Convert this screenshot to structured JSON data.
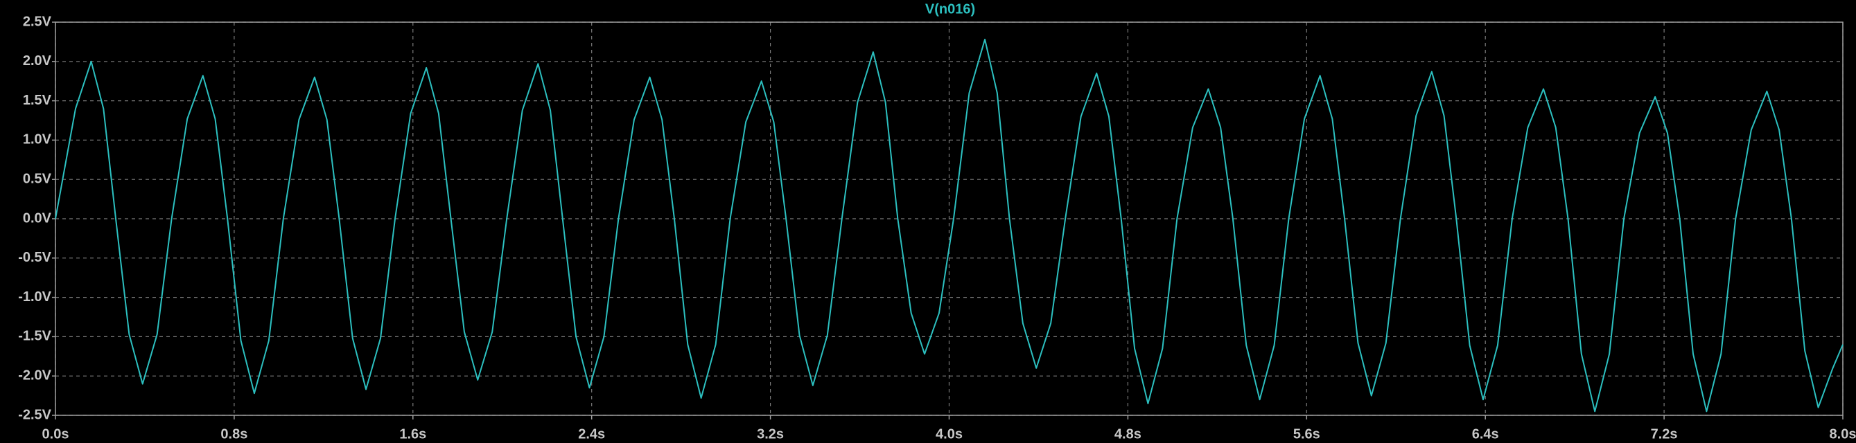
{
  "chart_data": {
    "type": "line",
    "x": [
      0,
      0.09,
      0.16,
      0.215,
      0.27,
      0.33,
      0.39,
      0.455,
      0.52,
      0.59,
      0.66,
      0.715,
      0.77,
      0.83,
      0.89,
      0.955,
      1.02,
      1.09,
      1.16,
      1.215,
      1.27,
      1.33,
      1.39,
      1.455,
      1.52,
      1.59,
      1.66,
      1.715,
      1.77,
      1.83,
      1.89,
      1.955,
      2.02,
      2.09,
      2.16,
      2.215,
      2.27,
      2.33,
      2.39,
      2.455,
      2.52,
      2.59,
      2.66,
      2.715,
      2.77,
      2.83,
      2.89,
      2.955,
      3.02,
      3.09,
      3.16,
      3.215,
      3.27,
      3.33,
      3.39,
      3.455,
      3.52,
      3.59,
      3.66,
      3.715,
      3.77,
      3.83,
      3.89,
      3.955,
      4.02,
      4.09,
      4.16,
      4.215,
      4.27,
      4.33,
      4.39,
      4.455,
      4.52,
      4.59,
      4.66,
      4.715,
      4.77,
      4.83,
      4.89,
      4.955,
      5.02,
      5.09,
      5.16,
      5.215,
      5.27,
      5.33,
      5.39,
      5.455,
      5.52,
      5.59,
      5.66,
      5.715,
      5.77,
      5.83,
      5.89,
      5.955,
      6.02,
      6.09,
      6.16,
      6.215,
      6.27,
      6.33,
      6.39,
      6.455,
      6.52,
      6.59,
      6.66,
      6.715,
      6.77,
      6.83,
      6.89,
      6.955,
      7.02,
      7.09,
      7.16,
      7.215,
      7.27,
      7.33,
      7.39,
      7.455,
      7.52,
      7.59,
      7.66,
      7.715,
      7.77,
      7.83,
      7.89,
      7.955,
      8.0
    ],
    "series": [
      {
        "name": "V(n016)",
        "color": "#2cc0c0",
        "values": [
          0,
          1.4,
          2.0,
          1.4,
          0,
          -1.47,
          -2.1,
          -1.47,
          0,
          1.27,
          1.82,
          1.27,
          0,
          -1.55,
          -2.22,
          -1.55,
          0,
          1.26,
          1.8,
          1.26,
          0,
          -1.52,
          -2.17,
          -1.52,
          0,
          1.34,
          1.92,
          1.34,
          0,
          -1.44,
          -2.05,
          -1.44,
          0,
          1.38,
          1.97,
          1.38,
          0,
          -1.5,
          -2.15,
          -1.5,
          0,
          1.26,
          1.8,
          1.26,
          0,
          -1.6,
          -2.28,
          -1.6,
          0,
          1.23,
          1.75,
          1.23,
          0,
          -1.48,
          -2.12,
          -1.48,
          0,
          1.48,
          2.12,
          1.48,
          0,
          -1.2,
          -1.72,
          -1.2,
          0,
          1.6,
          2.28,
          1.6,
          0,
          -1.33,
          -1.9,
          -1.33,
          0,
          1.3,
          1.85,
          1.3,
          0,
          -1.65,
          -2.35,
          -1.65,
          0,
          1.16,
          1.65,
          1.16,
          0,
          -1.61,
          -2.3,
          -1.61,
          0,
          1.27,
          1.82,
          1.27,
          0,
          -1.58,
          -2.25,
          -1.58,
          0,
          1.31,
          1.87,
          1.31,
          0,
          -1.61,
          -2.3,
          -1.61,
          0,
          1.16,
          1.65,
          1.16,
          0,
          -1.72,
          -2.45,
          -1.72,
          0,
          1.09,
          1.55,
          1.09,
          0,
          -1.72,
          -2.45,
          -1.72,
          0,
          1.13,
          1.62,
          1.13,
          0,
          -1.68,
          -2.4,
          -1.9,
          -1.6
        ]
      }
    ],
    "xlim": [
      0,
      8
    ],
    "ylim": [
      -2.5,
      2.5
    ],
    "xticks": [
      {
        "value": 0,
        "label": "0.0s"
      },
      {
        "value": 0.8,
        "label": "0.8s"
      },
      {
        "value": 1.6,
        "label": "1.6s"
      },
      {
        "value": 2.4,
        "label": "2.4s"
      },
      {
        "value": 3.2,
        "label": "3.2s"
      },
      {
        "value": 4.0,
        "label": "4.0s"
      },
      {
        "value": 4.8,
        "label": "4.8s"
      },
      {
        "value": 5.6,
        "label": "5.6s"
      },
      {
        "value": 6.4,
        "label": "6.4s"
      },
      {
        "value": 7.2,
        "label": "7.2s"
      },
      {
        "value": 8.0,
        "label": "8.0s"
      }
    ],
    "yticks": [
      {
        "value": 2.5,
        "label": "2.5V"
      },
      {
        "value": 2.0,
        "label": "2.0V"
      },
      {
        "value": 1.5,
        "label": "1.5V"
      },
      {
        "value": 1.0,
        "label": "1.0V"
      },
      {
        "value": 0.5,
        "label": "0.5V"
      },
      {
        "value": 0.0,
        "label": "0.0V"
      },
      {
        "value": -0.5,
        "label": "-0.5V"
      },
      {
        "value": -1.0,
        "label": "-1.0V"
      },
      {
        "value": -1.5,
        "label": "-1.5V"
      },
      {
        "value": -2.0,
        "label": "-2.0V"
      },
      {
        "value": -2.5,
        "label": "-2.5V"
      }
    ],
    "grid": true
  }
}
